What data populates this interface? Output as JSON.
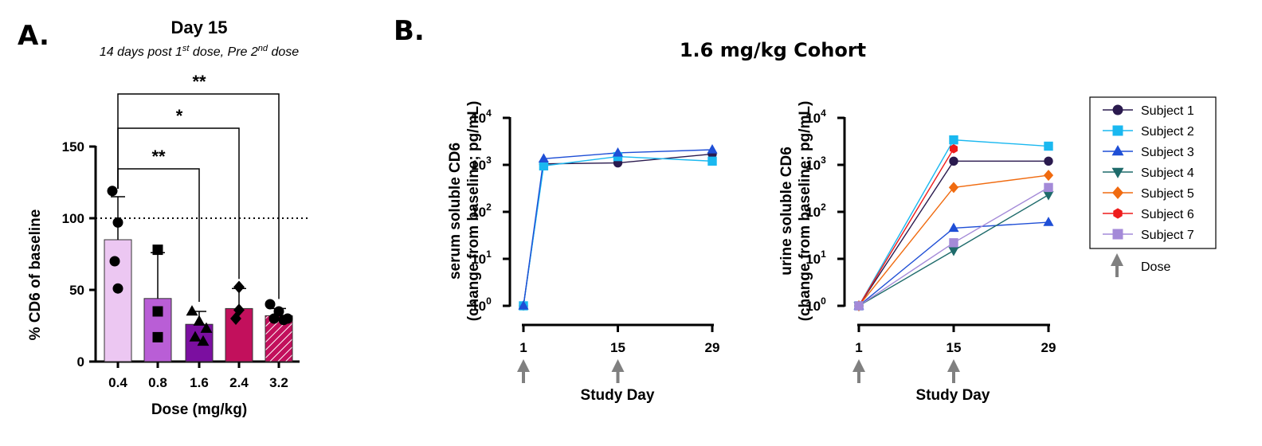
{
  "panel_labels": {
    "a": "A.",
    "b": "B."
  },
  "colors": {
    "arrow": "#808080"
  },
  "chart_data": [
    {
      "id": "A",
      "type": "bar",
      "title": "Day 15",
      "subtitle": "14 days post 1st dose, Pre 2nd dose",
      "subtitle_parts": {
        "p1": "14 days post 1",
        "sup1": "st",
        "p2": " dose, Pre 2",
        "sup2": "nd",
        "p3": " dose"
      },
      "xlabel": "Dose (mg/kg)",
      "ylabel": "% CD6 of baseline",
      "ylim": [
        0,
        150
      ],
      "yticks": [
        "0",
        "50",
        "100",
        "150"
      ],
      "yticks_values": [
        0,
        50,
        100,
        150
      ],
      "reference_line": 100,
      "categories": [
        "0.4",
        "0.8",
        "1.6",
        "2.4",
        "3.2"
      ],
      "means": [
        85,
        44,
        26,
        37,
        32
      ],
      "sd_upper": [
        115,
        76,
        35,
        51,
        37
      ],
      "bar_colors": [
        "#ecc7f2",
        "#b95ed6",
        "#7b0fa0",
        "#c2105c",
        "#c2105c"
      ],
      "bar_patterns": [
        "solid",
        "solid",
        "solid",
        "solid",
        "hatched"
      ],
      "point_markers": [
        "circle",
        "square",
        "triangle",
        "diamond",
        "circle"
      ],
      "points": [
        [
          119,
          97,
          70,
          51
        ],
        [
          78,
          35,
          17
        ],
        [
          35,
          28,
          23,
          17,
          14
        ],
        [
          52,
          36,
          30
        ],
        [
          40,
          35,
          30,
          30,
          29
        ]
      ],
      "significance": [
        {
          "from": "0.4",
          "to": "1.6",
          "label": "**"
        },
        {
          "from": "0.4",
          "to": "2.4",
          "label": "*"
        },
        {
          "from": "0.4",
          "to": "3.2",
          "label": "**"
        }
      ]
    },
    {
      "id": "B-serum",
      "type": "line",
      "title": "1.6 mg/kg Cohort",
      "xlabel": "Study Day",
      "ylabel_lines": [
        "serum soluble CD6",
        "(change from baseline; pg/mL)"
      ],
      "yscale": "log",
      "ylim": [
        1,
        10000
      ],
      "yticks": [
        {
          "base": "10",
          "exp": "0"
        },
        {
          "base": "10",
          "exp": "1"
        },
        {
          "base": "10",
          "exp": "2"
        },
        {
          "base": "10",
          "exp": "3"
        },
        {
          "base": "10",
          "exp": "4"
        }
      ],
      "xticks": [
        "1",
        "15",
        "29"
      ],
      "xticks_values": [
        1,
        15,
        29
      ],
      "xlim": [
        1,
        29
      ],
      "dose_days": [
        1,
        15
      ],
      "series": [
        {
          "name": "Subject 1",
          "x": [
            1,
            4,
            15,
            29
          ],
          "y": [
            1,
            1050,
            1100,
            1700
          ]
        },
        {
          "name": "Subject 2",
          "x": [
            1,
            4,
            15,
            29
          ],
          "y": [
            1,
            950,
            1500,
            1200
          ]
        },
        {
          "name": "Subject 3",
          "x": [
            1,
            4,
            15,
            29
          ],
          "y": [
            1,
            1350,
            1800,
            2100
          ]
        }
      ]
    },
    {
      "id": "B-urine",
      "type": "line",
      "xlabel": "Study Day",
      "ylabel_lines": [
        "urine soluble CD6",
        "(change from baseline; pg/mL)"
      ],
      "yscale": "log",
      "ylim": [
        1,
        10000
      ],
      "yticks": [
        {
          "base": "10",
          "exp": "0"
        },
        {
          "base": "10",
          "exp": "1"
        },
        {
          "base": "10",
          "exp": "2"
        },
        {
          "base": "10",
          "exp": "3"
        },
        {
          "base": "10",
          "exp": "4"
        }
      ],
      "xticks": [
        "1",
        "15",
        "29"
      ],
      "xticks_values": [
        1,
        15,
        29
      ],
      "xlim": [
        1,
        29
      ],
      "dose_days": [
        1,
        15
      ],
      "series": [
        {
          "name": "Subject 1",
          "x": [
            1,
            15,
            29
          ],
          "y": [
            1,
            1200,
            1200
          ]
        },
        {
          "name": "Subject 2",
          "x": [
            1,
            15,
            29
          ],
          "y": [
            1,
            3400,
            2500
          ]
        },
        {
          "name": "Subject 3",
          "x": [
            1,
            15,
            29
          ],
          "y": [
            1,
            45,
            60
          ]
        },
        {
          "name": "Subject 4",
          "x": [
            1,
            15,
            29
          ],
          "y": [
            1,
            15,
            230
          ]
        },
        {
          "name": "Subject 5",
          "x": [
            1,
            15,
            29
          ],
          "y": [
            1,
            330,
            600
          ]
        },
        {
          "name": "Subject 6",
          "x": [
            1,
            15
          ],
          "y": [
            1,
            2200
          ]
        },
        {
          "name": "Subject 7",
          "x": [
            1,
            15,
            29
          ],
          "y": [
            1,
            22,
            330
          ]
        }
      ]
    }
  ],
  "legend": {
    "placement": "right",
    "items": [
      {
        "name": "Subject 1",
        "color": "#2a1a4e",
        "marker": "circle"
      },
      {
        "name": "Subject 2",
        "color": "#1ab8f0",
        "marker": "square"
      },
      {
        "name": "Subject 3",
        "color": "#1f4fd6",
        "marker": "triangle"
      },
      {
        "name": "Subject 4",
        "color": "#1e6b6b",
        "marker": "triangle-down"
      },
      {
        "name": "Subject 5",
        "color": "#f06b10",
        "marker": "diamond"
      },
      {
        "name": "Subject 6",
        "color": "#ee1c1c",
        "marker": "hexagon"
      },
      {
        "name": "Subject 7",
        "color": "#a48ad8",
        "marker": "square"
      }
    ],
    "dose_label": "Dose"
  }
}
